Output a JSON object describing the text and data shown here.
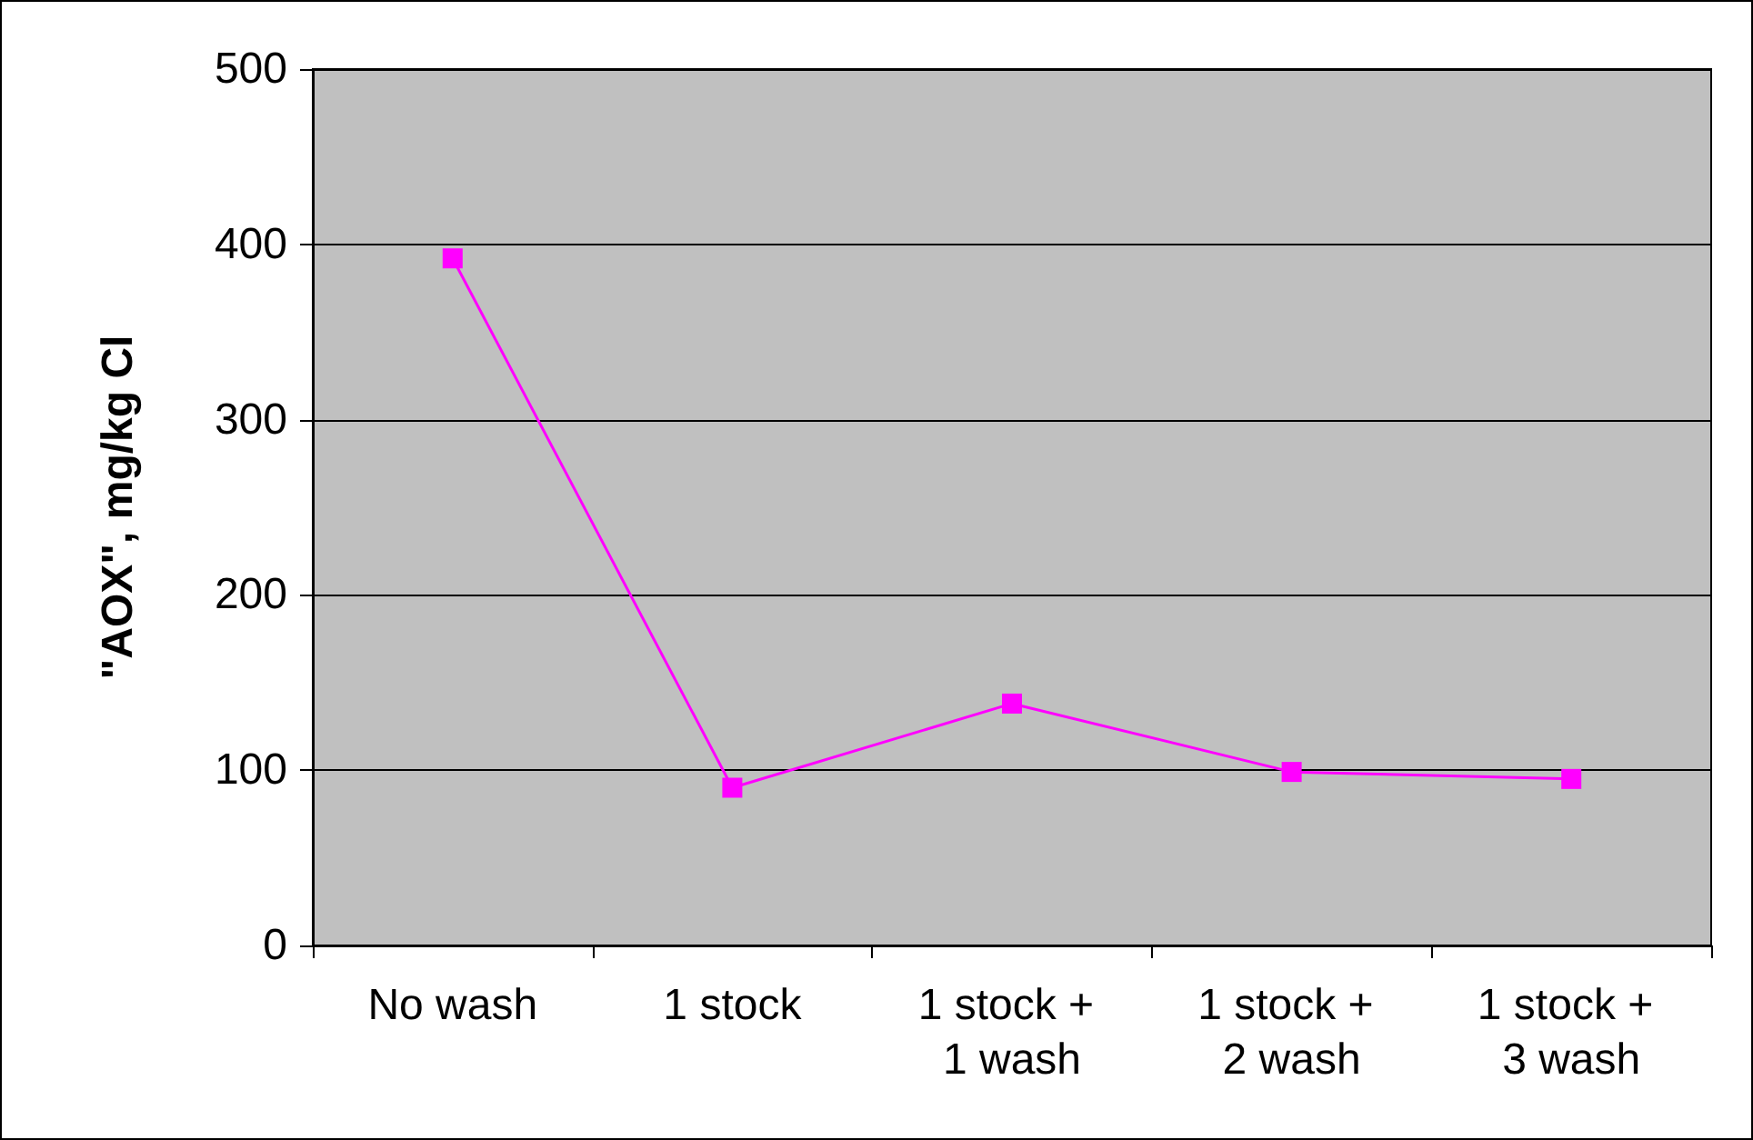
{
  "chart_data": {
    "type": "line",
    "ylabel": "\"AOX\", mg/kg Cl",
    "categories": [
      "No wash",
      "1 stock",
      "1 stock + 1 wash",
      "1 stock + 2 wash",
      "1 stock + 3 wash"
    ],
    "series": [
      {
        "color": "#ff00ff",
        "values": [
          392,
          90,
          138,
          99,
          95
        ]
      }
    ],
    "ylim": [
      0,
      500
    ],
    "yticks": [
      0,
      100,
      200,
      300,
      400,
      500
    ],
    "grid": "y",
    "marker": "square",
    "line_style": "solid"
  }
}
